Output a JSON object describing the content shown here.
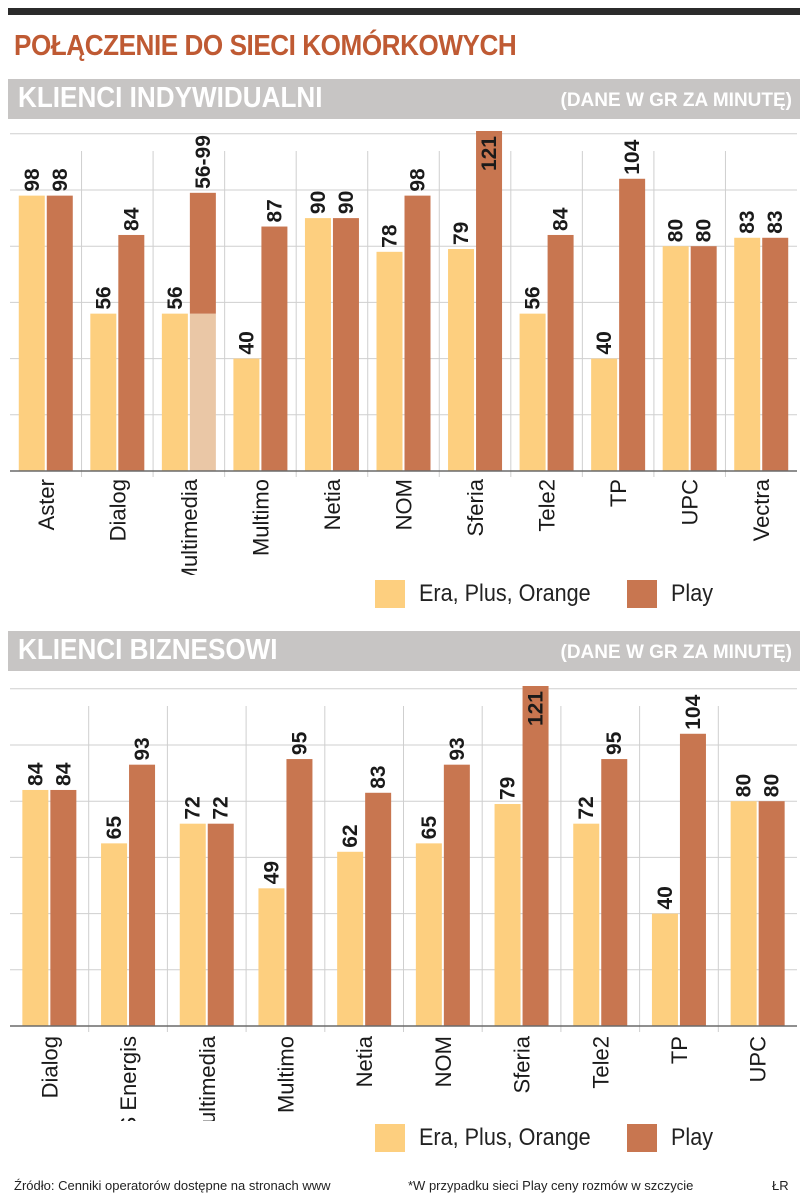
{
  "title": "POŁĄCZENIE DO SIECI KOMÓRKOWYCH",
  "colors": {
    "title": "#bf5a33",
    "series_a": "#fdcf7f",
    "series_b": "#c87650",
    "series_a_light": "#eac7a6",
    "section_bar": "#c7c5c4"
  },
  "legend": {
    "series_a": "Era, Plus, Orange",
    "series_b": "Play"
  },
  "footer": {
    "source": "Źródło: Cenniki operatorów dostępne na stronach www",
    "note": "*W przypadku sieci Play ceny rozmów w szczycie",
    "credit": "ŁR"
  },
  "chart_data": [
    {
      "type": "bar",
      "title": "KLIENCI INDYWIDUALNI",
      "unit": "(DANE W GR ZA MINUTĘ)",
      "categories": [
        "Aster",
        "Dialog",
        "Multimedia",
        "Multimo",
        "Netia",
        "NOM",
        "Sferia",
        "Tele2",
        "TP",
        "UPC",
        "Vectra"
      ],
      "series": [
        {
          "name": "Era, Plus, Orange",
          "values": [
            98,
            56,
            56,
            40,
            90,
            78,
            79,
            56,
            40,
            80,
            83
          ],
          "labels": [
            "98",
            "56",
            "56",
            "40",
            "90",
            "78",
            "79",
            "56",
            "40",
            "80",
            "83"
          ]
        },
        {
          "name": "Play",
          "values": [
            98,
            84,
            99,
            87,
            90,
            98,
            121,
            84,
            104,
            80,
            83
          ],
          "range_low": [
            null,
            null,
            56,
            null,
            null,
            null,
            null,
            null,
            null,
            null,
            null
          ],
          "labels": [
            "98",
            "84",
            "56-99",
            "87",
            "90",
            "98",
            "121",
            "84",
            "104",
            "80",
            "83"
          ]
        }
      ],
      "ylim": [
        0,
        121
      ],
      "grid": true
    },
    {
      "type": "bar",
      "title": "KLIENCI BIZNESOWI",
      "unit": "(DANE W GR ZA MINUTĘ)",
      "categories": [
        "Dialog",
        "GTS Energis",
        "Multimedia",
        "Multimo",
        "Netia",
        "NOM",
        "Sferia",
        "Tele2",
        "TP",
        "UPC"
      ],
      "series": [
        {
          "name": "Era, Plus, Orange",
          "values": [
            84,
            65,
            72,
            49,
            62,
            65,
            79,
            72,
            40,
            80
          ],
          "labels": [
            "84",
            "65",
            "72",
            "49",
            "62",
            "65",
            "79",
            "72",
            "40",
            "80"
          ]
        },
        {
          "name": "Play",
          "values": [
            84,
            93,
            72,
            95,
            83,
            93,
            121,
            95,
            104,
            80
          ],
          "labels": [
            "84",
            "93",
            "72",
            "95",
            "83",
            "93",
            "121",
            "95",
            "104",
            "80"
          ]
        }
      ],
      "ylim": [
        0,
        121
      ],
      "grid": true
    }
  ]
}
